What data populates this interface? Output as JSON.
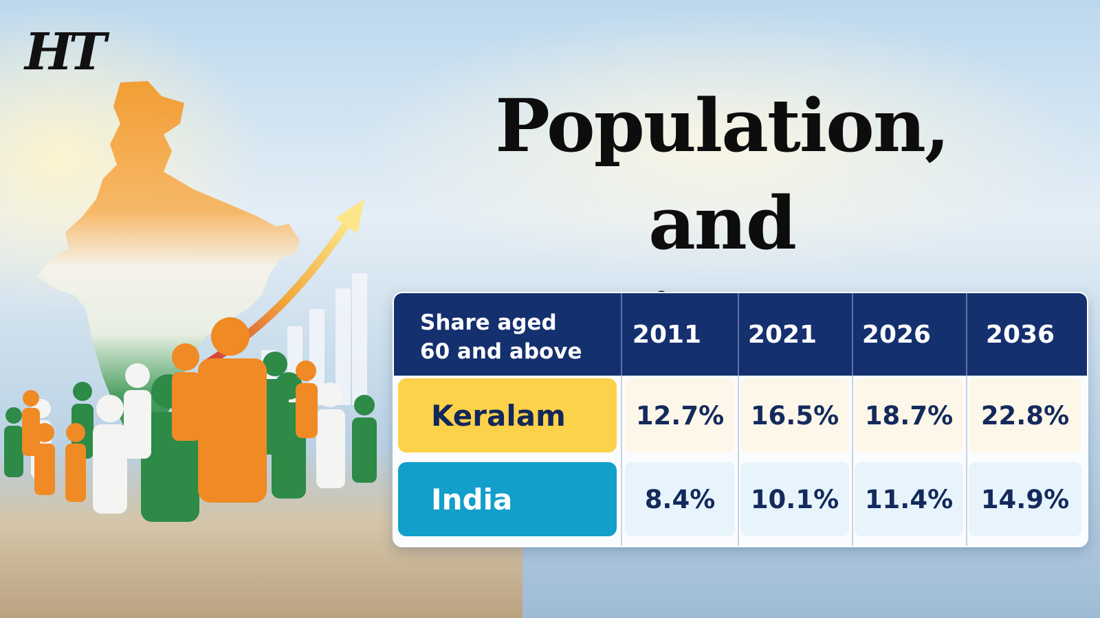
{
  "brand": {
    "logo_text": "HT"
  },
  "headline": {
    "line1": "Population,",
    "line2": "and estimates"
  },
  "table": {
    "corner_label": "Share aged\n60 and above",
    "columns": [
      "2011",
      "2021",
      "2026",
      "2036"
    ],
    "rows": [
      {
        "label": "Keralam",
        "values": [
          "12.7%",
          "16.5%",
          "18.7%",
          "22.8%"
        ],
        "label_color": "#fbd24a",
        "label_text_color": "#14275a"
      },
      {
        "label": "India",
        "values": [
          "8.4%",
          "10.1%",
          "11.4%",
          "14.9%"
        ],
        "label_color": "#129fca",
        "label_text_color": "#ffffff"
      }
    ],
    "header_color": "#15306f"
  },
  "illustration": {
    "icons": [
      "india-map-icon",
      "growth-arrow-icon",
      "bar-graph-icon",
      "people-crowd-icon"
    ],
    "colors": {
      "saffron": "#f08a24",
      "white": "#f4f4f2",
      "green": "#1f7a3a"
    }
  }
}
